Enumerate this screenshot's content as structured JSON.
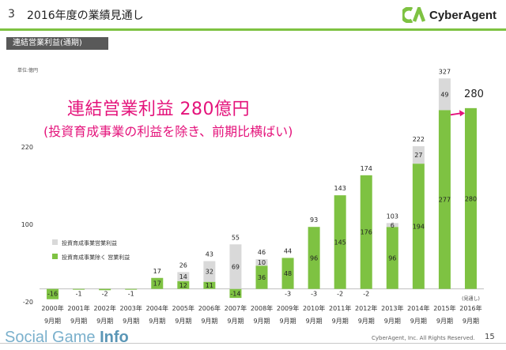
{
  "header": {
    "slide_number": "3",
    "title": "2016年度の業績見通し",
    "logo_text": "CyberAgent"
  },
  "section_label": "連結営業利益(通期)",
  "annotation": {
    "headline": "連結営業利益 280億円",
    "subline": "(投資育成事業の利益を除き、前期比横ばい)",
    "value_label": "280"
  },
  "footer": {
    "brand_light": "Social Game ",
    "brand_bold": "Info",
    "copyright": "CyberAgent, Inc. All Rights Reserved.",
    "page": "15"
  },
  "colors": {
    "green": "#7ec242",
    "gray": "#d9d9d9",
    "accent": "#e4137b"
  },
  "chart_data": {
    "type": "bar",
    "stacked": true,
    "unit_label": "単位:億円",
    "ylim": [
      -20,
      330
    ],
    "yticks": [
      220,
      100,
      -20
    ],
    "grid": false,
    "legend_position": "left-middle",
    "categories": [
      "2000年",
      "2001年",
      "2002年",
      "2003年",
      "2004年",
      "2005年",
      "2006年",
      "2007年",
      "2008年",
      "2009年",
      "2010年",
      "2011年",
      "2012年",
      "2013年",
      "2014年",
      "2015年",
      "2016年"
    ],
    "period_labels": [
      "9月期",
      "9月期",
      "9月期",
      "9月期",
      "9月期",
      "9月期",
      "9月期",
      "9月期",
      "9月期",
      "9月期",
      "9月期",
      "9月期",
      "9月期",
      "9月期",
      "9月期",
      "9月期",
      "9月期"
    ],
    "forecast_note": "(見通し)",
    "series": [
      {
        "name": "投資育成事業除く 営業利益",
        "values": [
          -16,
          -1,
          -2,
          -1,
          17,
          12,
          11,
          -14,
          36,
          48,
          96,
          145,
          176,
          96,
          194,
          277,
          280
        ]
      },
      {
        "name": "投資育成事業営業利益",
        "values": [
          0,
          0,
          0,
          0,
          0,
          14,
          32,
          69,
          10,
          -3,
          -3,
          -2,
          -2,
          6,
          27,
          49,
          0
        ]
      }
    ],
    "value_labels_green": [
      "-16",
      "-1",
      "-2",
      "-1",
      "17",
      "12",
      "11",
      "-14",
      "36",
      "48",
      "96",
      "145",
      "176",
      "96",
      "194",
      "277",
      "280"
    ],
    "value_labels_gray": [
      "",
      "",
      "",
      "",
      "",
      "14",
      "32",
      "69",
      "10",
      "-3",
      "-3",
      "-2",
      "-2",
      "6",
      "27",
      "49",
      ""
    ],
    "totals": [
      "",
      "",
      "",
      "",
      "17",
      "26",
      "43",
      "55",
      "46",
      "44",
      "93",
      "143",
      "174",
      "103",
      "222",
      "327",
      ""
    ]
  }
}
